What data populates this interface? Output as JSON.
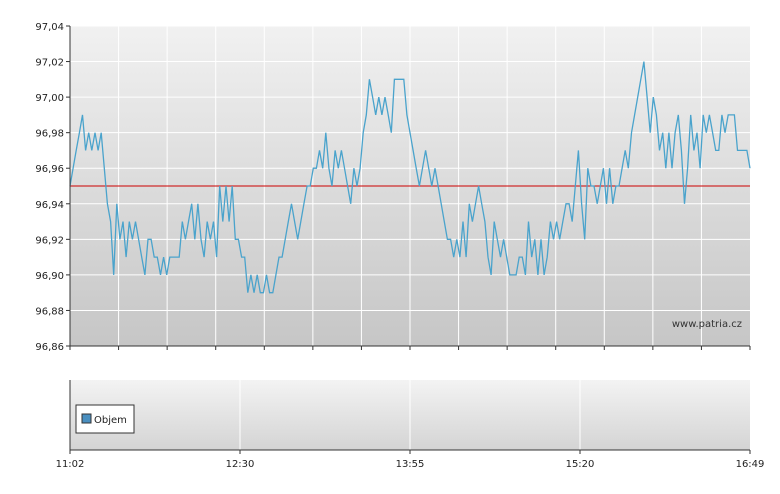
{
  "chart_data": [
    {
      "type": "line",
      "title": "",
      "xlabel": "",
      "ylabel": "",
      "ylim": [
        96.86,
        97.04
      ],
      "yticks": [
        "96,86",
        "96,88",
        "96,90",
        "96,92",
        "96,94",
        "96,96",
        "96,98",
        "97,00",
        "97,02",
        "97,04"
      ],
      "yticks_values": [
        96.86,
        96.88,
        96.9,
        96.92,
        96.94,
        96.96,
        96.98,
        97.0,
        97.02,
        97.04
      ],
      "grid": true,
      "reference_line": 96.95,
      "watermark": "www.patria.cz",
      "series": [
        {
          "values": [
            96.95,
            96.96,
            96.97,
            96.98,
            96.99,
            96.97,
            96.98,
            96.97,
            96.98,
            96.97,
            96.98,
            96.96,
            96.94,
            96.93,
            96.9,
            96.94,
            96.92,
            96.93,
            96.91,
            96.93,
            96.92,
            96.93,
            96.92,
            96.91,
            96.9,
            96.92,
            96.92,
            96.91,
            96.91,
            96.9,
            96.91,
            96.9,
            96.91,
            96.91,
            96.91,
            96.91,
            96.93,
            96.92,
            96.93,
            96.94,
            96.92,
            96.94,
            96.92,
            96.91,
            96.93,
            96.92,
            96.93,
            96.91,
            96.95,
            96.93,
            96.95,
            96.93,
            96.95,
            96.92,
            96.92,
            96.91,
            96.91,
            96.89,
            96.9,
            96.89,
            96.9,
            96.89,
            96.89,
            96.9,
            96.89,
            96.89,
            96.9,
            96.91,
            96.91,
            96.92,
            96.93,
            96.94,
            96.93,
            96.92,
            96.93,
            96.94,
            96.95,
            96.95,
            96.96,
            96.96,
            96.97,
            96.96,
            96.98,
            96.96,
            96.95,
            96.97,
            96.96,
            96.97,
            96.96,
            96.95,
            96.94,
            96.96,
            96.95,
            96.96,
            96.98,
            96.99,
            97.01,
            97.0,
            96.99,
            97.0,
            96.99,
            97.0,
            96.99,
            96.98,
            97.01,
            97.01,
            97.01,
            97.01,
            96.99,
            96.98,
            96.97,
            96.96,
            96.95,
            96.96,
            96.97,
            96.96,
            96.95,
            96.96,
            96.95,
            96.94,
            96.93,
            96.92,
            96.92,
            96.91,
            96.92,
            96.91,
            96.93,
            96.91,
            96.94,
            96.93,
            96.94,
            96.95,
            96.94,
            96.93,
            96.91,
            96.9,
            96.93,
            96.92,
            96.91,
            96.92,
            96.91,
            96.9,
            96.9,
            96.9,
            96.91,
            96.91,
            96.9,
            96.93,
            96.91,
            96.92,
            96.9,
            96.92,
            96.9,
            96.91,
            96.93,
            96.92,
            96.93,
            96.92,
            96.93,
            96.94,
            96.94,
            96.93,
            96.95,
            96.97,
            96.94,
            96.92,
            96.96,
            96.95,
            96.95,
            96.94,
            96.95,
            96.96,
            96.94,
            96.96,
            96.94,
            96.95,
            96.95,
            96.96,
            96.97,
            96.96,
            96.98,
            96.99,
            97.0,
            97.01,
            97.02,
            97.0,
            96.98,
            97.0,
            96.99,
            96.97,
            96.98,
            96.96,
            96.98,
            96.96,
            96.98,
            96.99,
            96.97,
            96.94,
            96.96,
            96.99,
            96.97,
            96.98,
            96.96,
            96.99,
            96.98,
            96.99,
            96.98,
            96.97,
            96.97,
            96.99,
            96.98,
            96.99,
            96.99,
            96.99,
            96.97,
            96.97,
            96.97,
            96.97,
            96.96
          ]
        }
      ]
    },
    {
      "type": "bar",
      "xticks": [
        "11:02",
        "12:30",
        "13:55",
        "15:20",
        "16:49"
      ],
      "legend": [
        {
          "label": "Objem",
          "color": "#4a8fc0"
        }
      ],
      "grid": true
    }
  ],
  "colors": {
    "line": "#4aa3cc",
    "reference": "#cc0000",
    "grid": "#ffffff",
    "plot_top": "#f1f1f1",
    "plot_bottom": "#c8c8c8",
    "axis": "#333333"
  }
}
